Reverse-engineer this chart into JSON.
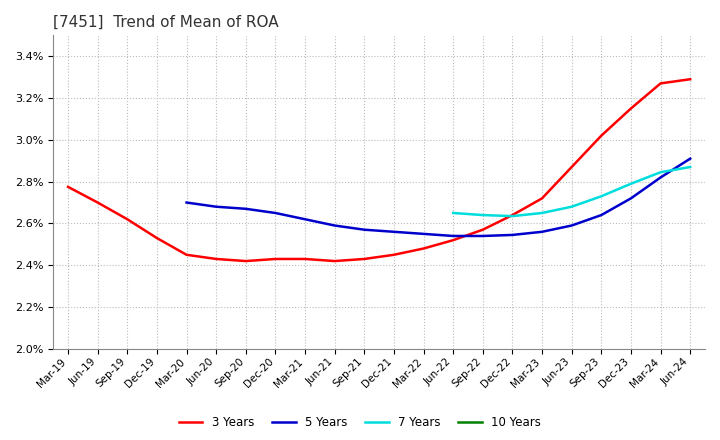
{
  "title": "[7451]  Trend of Mean of ROA",
  "title_fontsize": 11,
  "background_color": "#ffffff",
  "grid_color": "#bbbbbb",
  "ylim": [
    0.02,
    0.035
  ],
  "yticks": [
    0.02,
    0.022,
    0.024,
    0.026,
    0.028,
    0.03,
    0.032,
    0.034
  ],
  "x_labels": [
    "Mar-19",
    "Jun-19",
    "Sep-19",
    "Dec-19",
    "Mar-20",
    "Jun-20",
    "Sep-20",
    "Dec-20",
    "Mar-21",
    "Jun-21",
    "Sep-21",
    "Dec-21",
    "Mar-22",
    "Jun-22",
    "Sep-22",
    "Dec-22",
    "Mar-23",
    "Jun-23",
    "Sep-23",
    "Dec-23",
    "Mar-24",
    "Jun-24"
  ],
  "series": {
    "3 Years": {
      "color": "#ff0000",
      "values": [
        0.02775,
        0.027,
        0.0262,
        0.0253,
        0.0245,
        0.0243,
        0.0242,
        0.0243,
        0.0243,
        0.0242,
        0.0243,
        0.0245,
        0.0248,
        0.0252,
        0.0257,
        0.0264,
        0.0272,
        0.0287,
        0.0302,
        0.0315,
        0.0327,
        0.0329
      ]
    },
    "5 Years": {
      "color": "#0000cc",
      "values": [
        null,
        null,
        null,
        null,
        0.027,
        0.0268,
        0.0267,
        0.0265,
        0.0262,
        0.0259,
        0.0257,
        0.0256,
        0.0255,
        0.0254,
        0.0254,
        0.02545,
        0.0256,
        0.0259,
        0.0264,
        0.0272,
        0.0282,
        0.0291
      ]
    },
    "7 Years": {
      "color": "#00dddd",
      "values": [
        null,
        null,
        null,
        null,
        null,
        null,
        null,
        null,
        null,
        null,
        null,
        null,
        null,
        0.0265,
        0.0264,
        0.02635,
        0.0265,
        0.0268,
        0.0273,
        0.0279,
        0.02845,
        0.0287
      ]
    },
    "10 Years": {
      "color": "#008000",
      "values": [
        null,
        null,
        null,
        null,
        null,
        null,
        null,
        null,
        null,
        null,
        null,
        null,
        null,
        null,
        null,
        null,
        null,
        null,
        null,
        null,
        null,
        null
      ]
    }
  },
  "legend_entries": [
    "3 Years",
    "5 Years",
    "7 Years",
    "10 Years"
  ],
  "legend_colors": [
    "#ff0000",
    "#0000cc",
    "#00dddd",
    "#008000"
  ],
  "line_width": 1.8
}
